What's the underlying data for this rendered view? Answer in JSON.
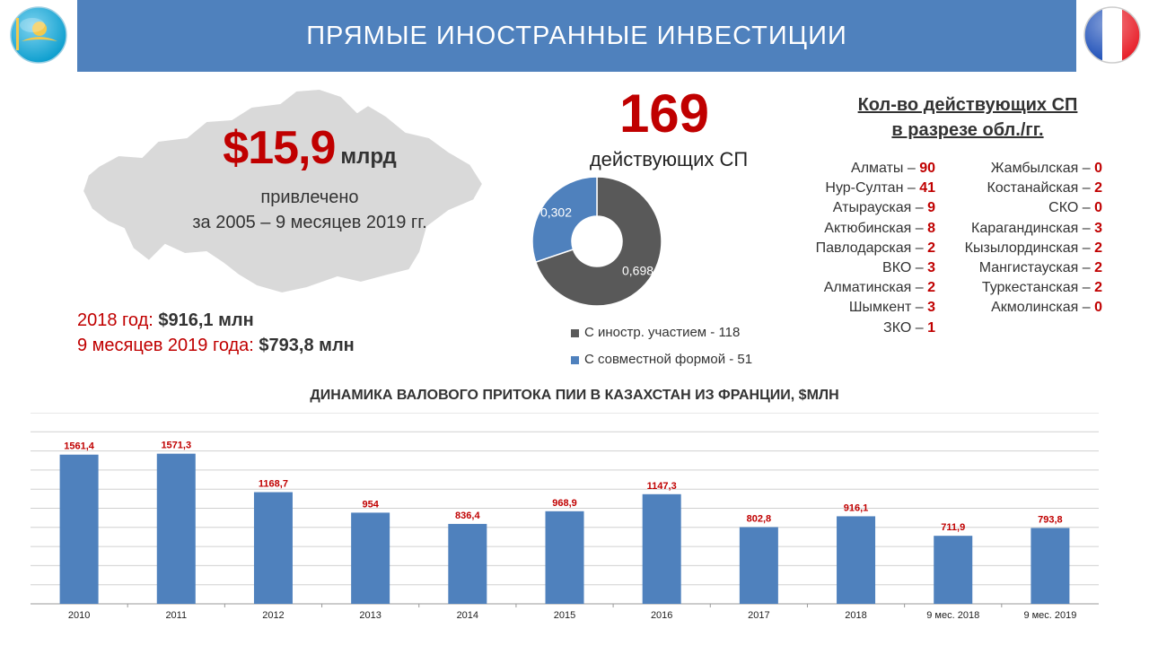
{
  "header": {
    "title": "ПРЯМЫЕ ИНОСТРАННЫЕ ИНВЕСТИЦИИ"
  },
  "colors": {
    "header_bg": "#4f81bd",
    "accent_red": "#c00000",
    "bar_blue": "#4f81bd",
    "donut_dark": "#595959",
    "donut_blue": "#4f81bd",
    "map_gray": "#d9d9d9"
  },
  "icons": {
    "left_flag": "kazakhstan-flag-icon",
    "right_flag": "france-flag-icon",
    "map": "kazakhstan-map"
  },
  "summary": {
    "amount": "$15,9",
    "unit": "млрд",
    "line1": "привлечено",
    "line2": "за 2005 – 9 месяцев 2019 гг.",
    "y2018_label": "2018 год: ",
    "y2018_value": "$916,1 млн",
    "m9_label": "9 месяцев 2019 года: ",
    "m9_value": "$793,8 млн"
  },
  "joint_ventures": {
    "count": "169",
    "label": "действующих СП",
    "legend": [
      {
        "label": "С иностр. участием - 118",
        "color": "#595959"
      },
      {
        "label": "С совместной формой - 51",
        "color": "#4f81bd"
      }
    ]
  },
  "regions": {
    "title_line1": "Кол-во действующих СП",
    "title_line2": "в разрезе обл./гг.",
    "left": [
      {
        "name": "Алматы – ",
        "count": "90"
      },
      {
        "name": "Нур-Султан – ",
        "count": "41"
      },
      {
        "name": "Атырауская – ",
        "count": "9"
      },
      {
        "name": "Актюбинская – ",
        "count": "8"
      },
      {
        "name": "Павлодарская – ",
        "count": "2"
      },
      {
        "name": "ВКО – ",
        "count": "3"
      },
      {
        "name": "Алматинская – ",
        "count": "2"
      },
      {
        "name": "Шымкент – ",
        "count": "3"
      },
      {
        "name": "ЗКО – ",
        "count": "1"
      }
    ],
    "right": [
      {
        "name": "Жамбылская – ",
        "count": "0"
      },
      {
        "name": "Костанайская – ",
        "count": "2"
      },
      {
        "name": "СКО – ",
        "count": "0"
      },
      {
        "name": "Карагандинская – ",
        "count": "3"
      },
      {
        "name": "Кызылординская – ",
        "count": "2"
      },
      {
        "name": "Мангистауская – ",
        "count": "2"
      },
      {
        "name": "Туркестанская – ",
        "count": "2"
      },
      {
        "name": "Акмолинская – ",
        "count": "0"
      }
    ]
  },
  "chart_data": [
    {
      "type": "pie",
      "donut": true,
      "categories": [
        "С иностр. участием - 118",
        "С совместной формой - 51"
      ],
      "values": [
        0.698,
        0.302
      ],
      "value_labels": [
        "0,698",
        "0,302"
      ],
      "colors": [
        "#595959",
        "#4f81bd"
      ]
    },
    {
      "type": "bar",
      "title": "ДИНАМИКА ВАЛОВОГО ПРИТОКА ПИИ В КАЗАХСТАН ИЗ ФРАНЦИИ, $МЛН",
      "categories": [
        "2010",
        "2011",
        "2012",
        "2013",
        "2014",
        "2015",
        "2016",
        "2017",
        "2018",
        "9 мес. 2018",
        "9 мес. 2019"
      ],
      "values": [
        1561.4,
        1571.3,
        1168.7,
        954,
        836.4,
        968.9,
        1147.3,
        802.8,
        916.1,
        711.9,
        793.8
      ],
      "value_labels": [
        "1561,4",
        "1571,3",
        "1168,7",
        "954",
        "836,4",
        "968,9",
        "1147,3",
        "802,8",
        "916,1",
        "711,9",
        "793,8"
      ],
      "ylim": [
        0,
        2000
      ],
      "grid": true,
      "color": "#4f81bd"
    }
  ]
}
